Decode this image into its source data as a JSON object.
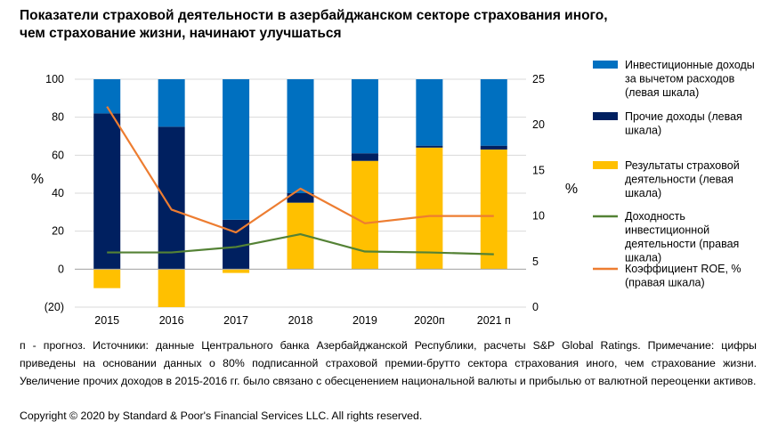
{
  "title": {
    "line1": "Показатели страховой деятельности в азербайджанском секторе страхования иного,",
    "line2": "чем страхование жизни, начинают улучшаться"
  },
  "chart_data": {
    "type": "bar",
    "categories": [
      "2015",
      "2016",
      "2017",
      "2018",
      "2019",
      "2020п",
      "2021 п"
    ],
    "left_axis": {
      "label": "%",
      "ylim": [
        -20,
        100
      ],
      "ticks": [
        -20,
        0,
        20,
        40,
        60,
        80,
        100
      ],
      "tick_labels": [
        "(20)",
        "0",
        "20",
        "40",
        "60",
        "80",
        "100"
      ]
    },
    "right_axis": {
      "label": "%",
      "ylim": [
        0,
        25
      ],
      "ticks": [
        0,
        5,
        10,
        15,
        20,
        25
      ],
      "tick_labels": [
        "0",
        "5",
        "10",
        "15",
        "20",
        "25"
      ]
    },
    "grid": true,
    "series": [
      {
        "name": "Инвестиционные доходы за вычетом расходов (левая шкала)",
        "kind": "bar",
        "axis": "left",
        "color": "#0070C0",
        "values": [
          18,
          25,
          74,
          60,
          39,
          35,
          35
        ]
      },
      {
        "name": "Прочие доходы (левая шкала)",
        "kind": "bar",
        "axis": "left",
        "color": "#002060",
        "values": [
          82,
          75,
          26,
          5,
          4,
          1,
          2
        ]
      },
      {
        "name": "Результаты страховой деятельности (левая шкала)",
        "kind": "bar",
        "axis": "left",
        "color": "#FFC000",
        "values": [
          -10,
          -20,
          -2,
          35,
          57,
          64,
          63
        ]
      },
      {
        "name": "Доходность инвестиционной деятельности (правая шкала)",
        "kind": "line",
        "axis": "right",
        "color": "#548235",
        "values": [
          6.0,
          6.0,
          6.6,
          8.0,
          6.1,
          6.0,
          5.8
        ]
      },
      {
        "name": "Коэффициент ROE, % (правая шкала)",
        "kind": "line",
        "axis": "right",
        "color": "#ED7D31",
        "values": [
          22.0,
          10.7,
          8.2,
          13.0,
          9.2,
          10.0,
          10.0
        ]
      }
    ],
    "legend": [
      {
        "lines": [
          "Инвестиционные доходы",
          "за вычетом  расходов",
          "(левая шкала)"
        ],
        "color": "#0070C0",
        "marker": "box"
      },
      {
        "lines": [
          "Прочие доходы (левая",
          "шкала)"
        ],
        "color": "#002060",
        "marker": "box"
      },
      {
        "lines": [
          "Результаты  страховой",
          "деятельности (левая",
          "шкала)"
        ],
        "color": "#FFC000",
        "marker": "box"
      },
      {
        "lines": [
          "Доходность",
          "инвестиционной",
          "деятельности (правая",
          "шкала)"
        ],
        "color": "#548235",
        "marker": "line"
      },
      {
        "lines": [
          "Коэффициент ROE, %",
          "(правая шкала)"
        ],
        "color": "#ED7D31",
        "marker": "line"
      }
    ],
    "legend_position": "right"
  },
  "note": "п - прогноз. Источники: данные Центрального банка Азербайджанской Республики, расчеты S&P Global Ratings. Примечание: цифры приведены на основании данных о 80% подписанной страховой премии-брутто сектора страхования иного, чем страхование жизни. Увеличение прочих доходов в 2015-2016 гг. было связано с обесценением национальной валюты и прибылью от валютной переоценки активов.",
  "copyright": "Copyright © 2020 by Standard & Poor's Financial Services LLC. All rights reserved."
}
